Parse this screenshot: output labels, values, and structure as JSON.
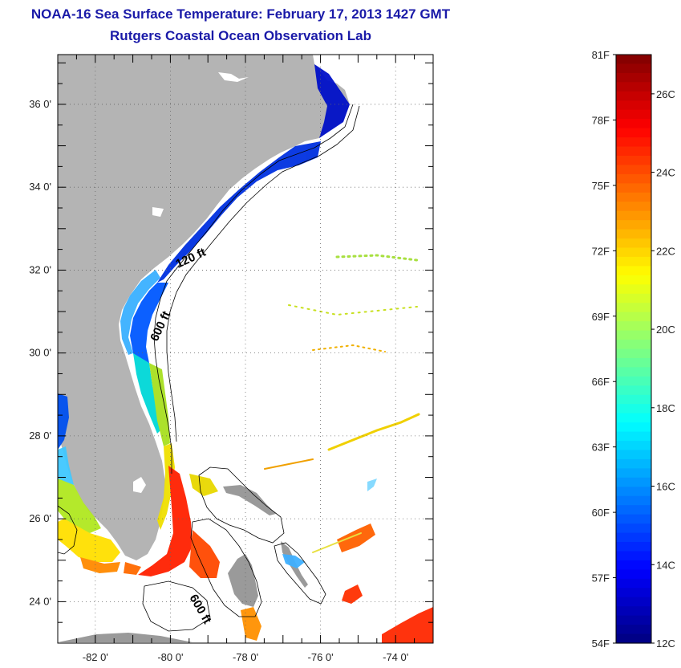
{
  "header": {
    "title": "NOAA-16 Sea Surface Temperature:  February 17, 2013 1427 GMT",
    "subtitle": "Rutgers Coastal Ocean Observation Lab"
  },
  "map": {
    "lat_ticks": [
      {
        "value": 36,
        "label": "36 0'"
      },
      {
        "value": 34,
        "label": "34 0'"
      },
      {
        "value": 32,
        "label": "32 0'"
      },
      {
        "value": 30,
        "label": "30 0'"
      },
      {
        "value": 28,
        "label": "28 0'"
      },
      {
        "value": 26,
        "label": "26 0'"
      },
      {
        "value": 24,
        "label": "24 0'"
      }
    ],
    "lon_ticks": [
      {
        "value": -82,
        "label": "-82 0'"
      },
      {
        "value": -80,
        "label": "-80 0'"
      },
      {
        "value": -78,
        "label": "-78 0'"
      },
      {
        "value": -76,
        "label": "-76 0'"
      },
      {
        "value": -74,
        "label": "-74 0'"
      }
    ],
    "lat_range": [
      23,
      37.2
    ],
    "lon_range": [
      -83,
      -73
    ],
    "contour_labels": [
      "120 ft",
      "600 ft",
      "600 ft"
    ],
    "land_color": "#b4b4b4"
  },
  "colorbar": {
    "fahrenheit": [
      "81F",
      "78F",
      "75F",
      "72F",
      "69F",
      "66F",
      "63F",
      "60F",
      "57F",
      "54F"
    ],
    "celsius": [
      "26C",
      "24C",
      "22C",
      "20C",
      "18C",
      "16C",
      "14C",
      "12C"
    ],
    "range_c": [
      12,
      27
    ]
  }
}
